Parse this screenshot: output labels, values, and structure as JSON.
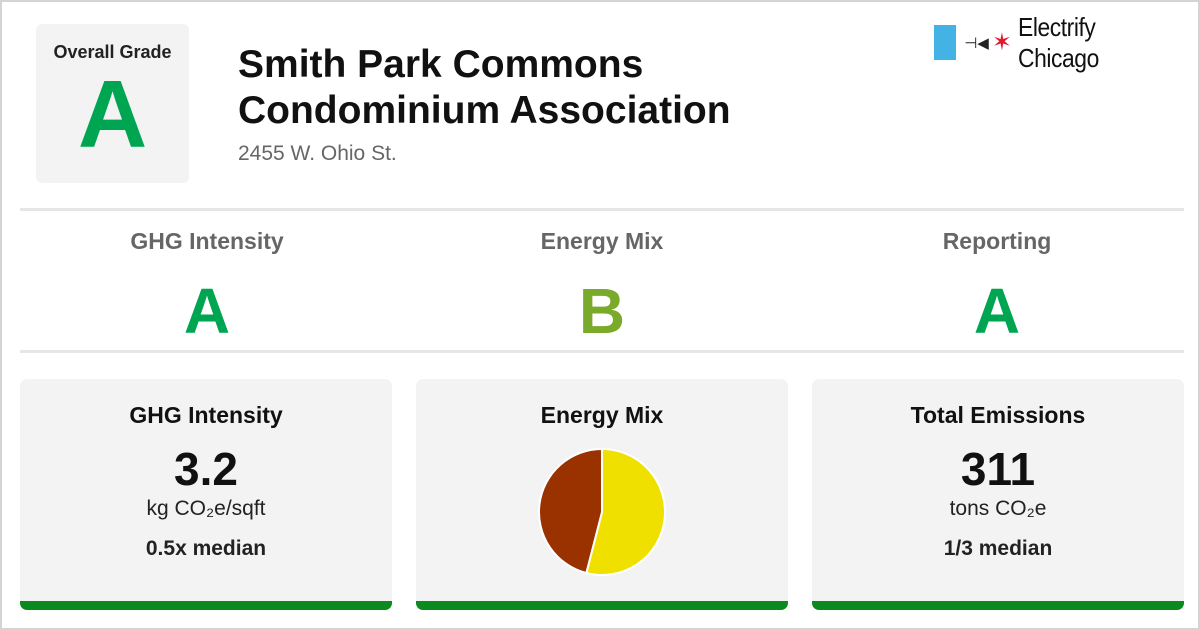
{
  "header": {
    "overall_label": "Overall Grade",
    "overall_grade": "A",
    "title_line1": "Smith Park Commons",
    "title_line2": "Condominium Association",
    "address": "2455 W. Ohio St."
  },
  "brand": {
    "name": "Electrify Chicago",
    "plug_glyph": "⊣◀",
    "star_glyph": "✶",
    "flag_color": "#43b3e6",
    "star_color": "#e0192b"
  },
  "subgrades": [
    {
      "label": "GHG Intensity",
      "grade": "A"
    },
    {
      "label": "Energy Mix",
      "grade": "B"
    },
    {
      "label": "Reporting",
      "grade": "A"
    }
  ],
  "cards": {
    "ghg": {
      "title": "GHG Intensity",
      "value": "3.2",
      "unit": "kg CO₂e/sqft",
      "median": "0.5x median"
    },
    "energy": {
      "title": "Energy Mix"
    },
    "emissions": {
      "title": "Total Emissions",
      "value": "311",
      "unit": "tons CO₂e",
      "median": "1/3 median"
    }
  },
  "colors": {
    "grade_a": "#00a551",
    "grade_b": "#7aaa2a",
    "card_bar": "#0b8a1f"
  },
  "chart_data": {
    "type": "pie",
    "slices": [
      {
        "value": 54,
        "color": "#f0e000"
      },
      {
        "value": 46,
        "color": "#9a3200"
      }
    ]
  }
}
